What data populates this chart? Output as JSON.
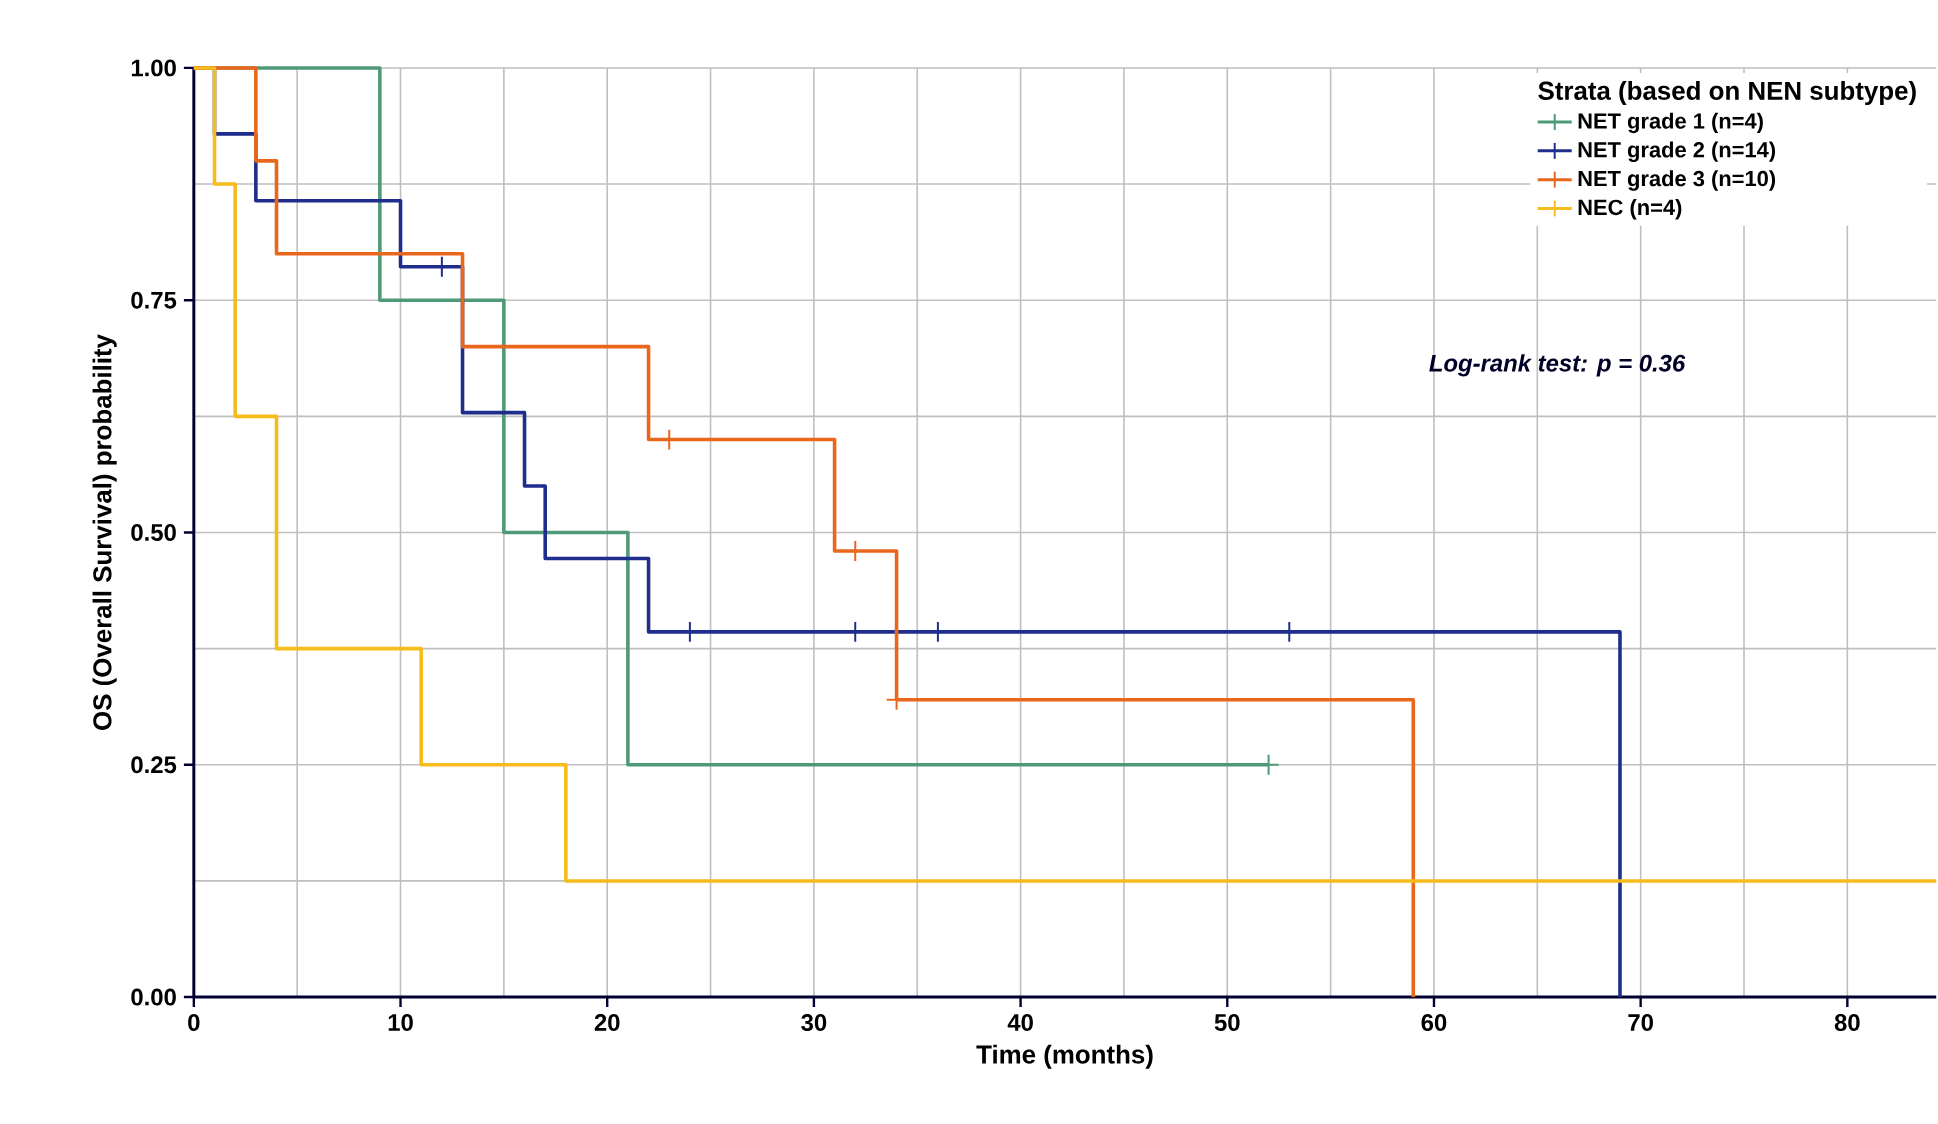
{
  "chart_data": {
    "type": "step",
    "xlabel": "Time (months)",
    "ylabel": "OS (Overall Survival) probability",
    "legend_title": "Strata (based on NEN subtype)",
    "xlim": [
      0,
      84.3
    ],
    "ylim": [
      0,
      1
    ],
    "xticks": [
      0,
      10,
      20,
      30,
      40,
      50,
      60,
      70,
      80
    ],
    "yticks": [
      {
        "value": 0,
        "label": "0.00"
      },
      {
        "value": 0.25,
        "label": "0.25"
      },
      {
        "value": 0.5,
        "label": "0.50"
      },
      {
        "value": 0.75,
        "label": "0.75"
      },
      {
        "value": 1,
        "label": "1.00"
      }
    ],
    "grid": true,
    "legend": "top right",
    "annotations": [
      "Log-rank test: p = 0.36"
    ],
    "series": [
      {
        "name": "NET grade 1 (n=4)",
        "color": "#4e9a78",
        "x": [
          0,
          9,
          15,
          21,
          52
        ],
        "values": [
          1,
          0.75,
          0.5,
          0.25,
          0.25
        ]
      },
      {
        "name": "NET grade 2 (n=14)",
        "color": "#1f2d8c",
        "x": [
          0,
          1,
          3,
          10,
          13,
          16,
          17,
          22,
          69,
          69
        ],
        "values": [
          1,
          0.929,
          0.857,
          0.786,
          0.629,
          0.55,
          0.472,
          0.393,
          0,
          0
        ]
      },
      {
        "name": "NET grade 3 (n=10)",
        "color": "#e8671c",
        "x": [
          0,
          3,
          4,
          13,
          22,
          31,
          34,
          59,
          59
        ],
        "values": [
          1,
          0.9,
          0.8,
          0.7,
          0.6,
          0.48,
          0.32,
          0,
          0
        ]
      },
      {
        "name": "NEC (n=4)",
        "color": "#f5bc1c",
        "x": [
          0,
          1,
          2,
          4,
          11,
          18,
          84.3
        ],
        "values": [
          1,
          0.875,
          0.625,
          0.375,
          0.25,
          0.125,
          0.125
        ]
      },
      {
        "type": "scatter",
        "marker": "cross",
        "color": "#4e9a78",
        "x": [
          52
        ],
        "values": [
          0.25
        ]
      },
      {
        "type": "scatter",
        "marker": "cross",
        "color": "#1f2d8c",
        "x": [
          12,
          24,
          32,
          36,
          53
        ],
        "values": [
          0.786,
          0.393,
          0.393,
          0.393,
          0.393
        ]
      },
      {
        "type": "scatter",
        "marker": "cross",
        "color": "#e8671c",
        "x": [
          23,
          32,
          34
        ],
        "values": [
          0.6,
          0.48,
          0.32
        ]
      }
    ]
  }
}
